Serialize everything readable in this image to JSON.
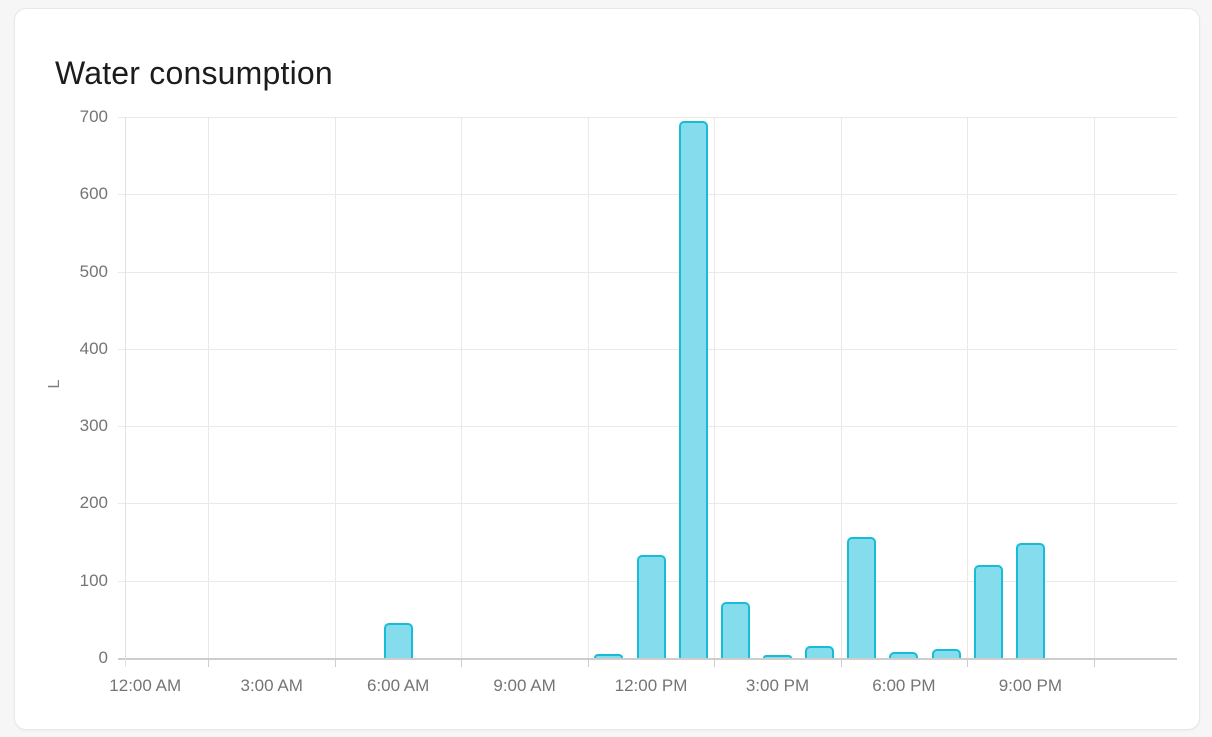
{
  "card": {
    "title": "Water consumption"
  },
  "chart_data": {
    "type": "bar",
    "title": "Water consumption",
    "xlabel": "",
    "ylabel": "L",
    "unit": "L",
    "x_axis": "time-of-day, hourly bars from 12:00 AM to 11:00 PM",
    "values_by_hour_from_midnight": [
      0,
      0,
      0,
      0,
      0,
      0,
      0,
      45,
      0,
      0,
      0,
      0,
      5,
      133,
      695,
      72,
      2,
      15,
      156,
      8,
      11,
      120,
      149,
      0
    ],
    "xtick_labels": [
      "12:00 AM",
      "3:00 AM",
      "6:00 AM",
      "9:00 AM",
      "12:00 PM",
      "3:00 PM",
      "6:00 PM",
      "9:00 PM"
    ],
    "ytick_values": [
      0,
      100,
      200,
      300,
      400,
      500,
      600,
      700
    ],
    "ylim": [
      0,
      700
    ],
    "grid": true,
    "legend": "none",
    "colors": {
      "bar_fill": "#85dcec",
      "bar_border": "#18bdd5",
      "grid_line": "#e9e9e9",
      "axis_line": "#cdcdcd",
      "axis_text": "#757575",
      "title_text": "#1c1c1c",
      "card_background": "#ffffff",
      "page_background": "#f6f6f6"
    }
  }
}
